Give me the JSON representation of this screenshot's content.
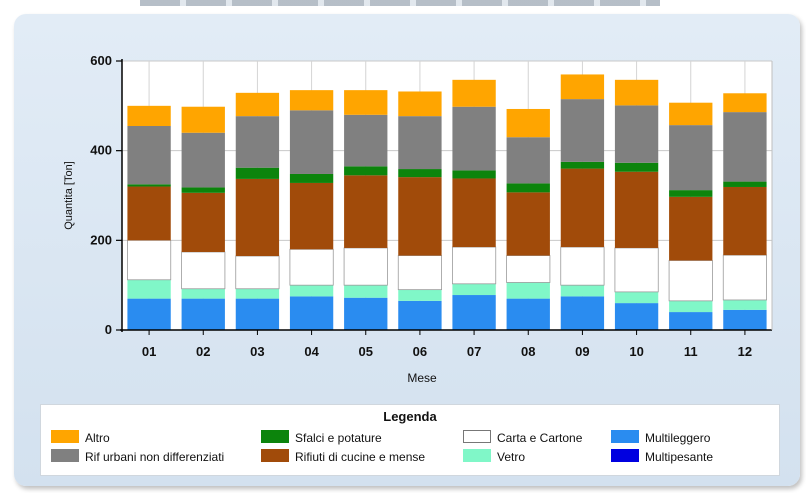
{
  "chart_data": {
    "type": "bar",
    "stacked": true,
    "xlabel": "Mese",
    "ylabel": "Quantita [Ton]",
    "ylim": [
      0,
      600
    ],
    "yticks": [
      0,
      200,
      400,
      600
    ],
    "grid": true,
    "categories": [
      "01",
      "02",
      "03",
      "04",
      "05",
      "06",
      "07",
      "08",
      "09",
      "10",
      "11",
      "12"
    ],
    "series": [
      {
        "name": "Multileggero",
        "color": "#2a8cf0",
        "values": [
          70,
          70,
          70,
          75,
          72,
          65,
          78,
          70,
          75,
          60,
          40,
          45
        ]
      },
      {
        "name": "Multipesante",
        "color": "#0000e0",
        "values": [
          0,
          0,
          0,
          0,
          0,
          0,
          0,
          0,
          0,
          0,
          0,
          0
        ]
      },
      {
        "name": "Vetro",
        "color": "#80f7c8",
        "values": [
          42,
          22,
          22,
          25,
          28,
          25,
          25,
          36,
          25,
          25,
          25,
          22
        ]
      },
      {
        "name": "Carta e Cartone",
        "color": "#ffffff",
        "values": [
          88,
          82,
          73,
          80,
          83,
          76,
          82,
          60,
          85,
          98,
          90,
          100
        ]
      },
      {
        "name": "Rifiuti di cucine e mense",
        "color": "#a14b0a",
        "values": [
          120,
          132,
          172,
          148,
          162,
          175,
          153,
          141,
          175,
          170,
          142,
          152
        ]
      },
      {
        "name": "Sfalci e potature",
        "color": "#0c840c",
        "values": [
          5,
          12,
          25,
          20,
          20,
          18,
          18,
          20,
          15,
          20,
          15,
          12
        ]
      },
      {
        "name": "Rif urbani non differenziati",
        "color": "#808080",
        "values": [
          130,
          122,
          115,
          142,
          115,
          118,
          142,
          103,
          140,
          128,
          145,
          155
        ]
      },
      {
        "name": "Altro",
        "color": "#ffa500",
        "values": [
          45,
          58,
          52,
          45,
          55,
          55,
          60,
          63,
          55,
          57,
          50,
          42
        ]
      }
    ]
  },
  "legend": {
    "title": "Legenda",
    "items": [
      {
        "label": "Altro",
        "color": "#ffa500"
      },
      {
        "label": "Rif urbani non differenziati",
        "color": "#808080"
      },
      {
        "label": "Sfalci e potature",
        "color": "#0c840c"
      },
      {
        "label": "Rifiuti di cucine e mense",
        "color": "#a14b0a"
      },
      {
        "label": "Carta e Cartone",
        "color": "#ffffff"
      },
      {
        "label": "Vetro",
        "color": "#80f7c8"
      },
      {
        "label": "Multileggero",
        "color": "#2a8cf0"
      },
      {
        "label": "Multipesante",
        "color": "#0000e0"
      }
    ]
  }
}
